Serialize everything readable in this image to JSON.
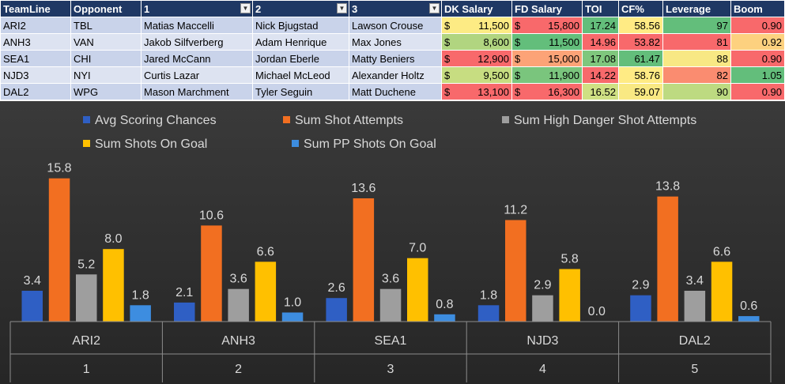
{
  "table": {
    "headers": [
      "TeamLine",
      "Opponent",
      "1",
      "2",
      "3",
      "DK Salary",
      "FD Salary",
      "TOI",
      "CF%",
      "Leverage",
      "Boom"
    ],
    "currency": "$",
    "rows": [
      {
        "teamline": "ARI2",
        "opponent": "TBL",
        "p1": "Matias Maccelli",
        "p2": "Nick Bjugstad",
        "p3": "Lawson Crouse",
        "dk": "11,500",
        "fd": "15,800",
        "toi": "17.24",
        "cf": "58.56",
        "lev": "97",
        "boom": "0.90"
      },
      {
        "teamline": "ANH3",
        "opponent": "VAN",
        "p1": "Jakob Silfverberg",
        "p2": "Adam Henrique",
        "p3": "Max Jones",
        "dk": "8,600",
        "fd": "11,500",
        "toi": "14.96",
        "cf": "53.82",
        "lev": "81",
        "boom": "0.92"
      },
      {
        "teamline": "SEA1",
        "opponent": "CHI",
        "p1": "Jared McCann",
        "p2": "Jordan Eberle",
        "p3": "Matty Beniers",
        "dk": "12,900",
        "fd": "15,000",
        "toi": "17.08",
        "cf": "61.47",
        "lev": "88",
        "boom": "0.90"
      },
      {
        "teamline": "NJD3",
        "opponent": "NYI",
        "p1": "Curtis Lazar",
        "p2": "Michael McLeod",
        "p3": "Alexander Holtz",
        "dk": "9,500",
        "fd": "11,900",
        "toi": "14.22",
        "cf": "58.76",
        "lev": "82",
        "boom": "1.05"
      },
      {
        "teamline": "DAL2",
        "opponent": "WPG",
        "p1": "Mason Marchment",
        "p2": "Tyler Seguin",
        "p3": "Matt Duchene",
        "dk": "13,100",
        "fd": "16,300",
        "toi": "16.52",
        "cf": "59.07",
        "lev": "90",
        "boom": "0.90"
      }
    ],
    "cell_colors": {
      "dk": [
        "#fdeb84",
        "#b1d580",
        "#f8696b",
        "#c7dd81",
        "#f8696b"
      ],
      "fd": [
        "#f8696b",
        "#63be7b",
        "#fca377",
        "#7ac57d",
        "#f8696b"
      ],
      "toi": [
        "#63be7b",
        "#f8696b",
        "#7fc77d",
        "#f8696b",
        "#cfe083"
      ],
      "cf": [
        "#ffeb84",
        "#f8696b",
        "#63be7b",
        "#ffeb84",
        "#f9e983"
      ],
      "lev": [
        "#63be7b",
        "#f8696b",
        "#f8e884",
        "#fa8c70",
        "#bdda81"
      ],
      "boom": [
        "#f8696b",
        "#fdd17f",
        "#f8696b",
        "#63be7b",
        "#f8696b"
      ]
    }
  },
  "chart_data": {
    "type": "bar",
    "categories": [
      "ARI2",
      "ANH3",
      "SEA1",
      "NJD3",
      "DAL2"
    ],
    "category_index": [
      "1",
      "2",
      "3",
      "4",
      "5"
    ],
    "ylim": [
      0,
      19
    ],
    "legend_position": "top",
    "series": [
      {
        "name": "Avg Scoring Chances",
        "color": "#2f5fc4",
        "values": [
          3.4,
          2.1,
          2.6,
          1.8,
          2.9
        ]
      },
      {
        "name": "Sum Shot Attempts",
        "color": "#f26f21",
        "values": [
          15.8,
          10.6,
          13.6,
          11.2,
          13.8
        ]
      },
      {
        "name": "Sum High Danger Shot Attempts",
        "color": "#9e9e9e",
        "values": [
          5.2,
          3.6,
          3.6,
          2.9,
          3.4
        ]
      },
      {
        "name": "Sum Shots On Goal",
        "color": "#ffc000",
        "values": [
          8.0,
          6.6,
          7.0,
          5.8,
          6.6
        ]
      },
      {
        "name": "Sum PP Shots On Goal",
        "color": "#3d8de0",
        "values": [
          1.8,
          1.0,
          0.8,
          0.0,
          0.6
        ]
      }
    ],
    "data_labels": [
      [
        "3.4",
        "2.1",
        "2.6",
        "1.8",
        "2.9"
      ],
      [
        "15.8",
        "10.6",
        "13.6",
        "11.2",
        "13.8"
      ],
      [
        "5.2",
        "3.6",
        "3.6",
        "2.9",
        "3.4"
      ],
      [
        "8.0",
        "6.6",
        "7.0",
        "5.8",
        "6.6"
      ],
      [
        "1.8",
        "1.0",
        "0.8",
        "0.0",
        "0.6"
      ]
    ]
  }
}
